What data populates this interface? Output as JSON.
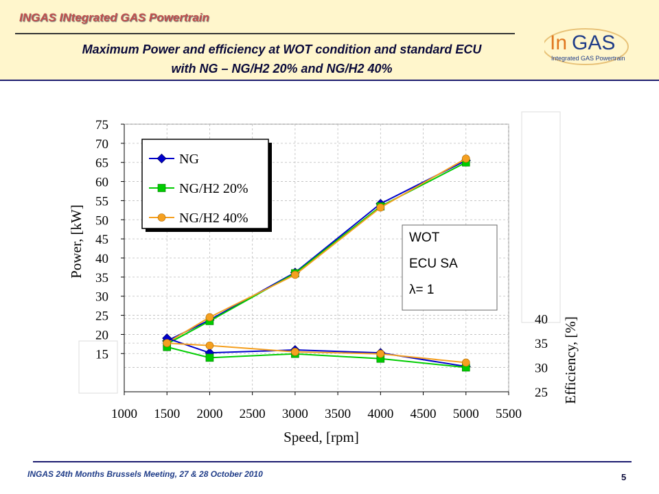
{
  "header": {
    "project_title": "INGAS INtegrated GAS Powertrain",
    "slide_title_line1": "Maximum Power and efficiency at WOT condition and standard ECU",
    "slide_title_line2": "with NG – NG/H2 20% and NG/H2 40%",
    "logo_text_in": "In",
    "logo_text_gas": "GAS",
    "logo_tagline": "Integrated GAS Powertrain"
  },
  "footer": {
    "meeting": "INGAS 24th Months Brussels Meeting, 27 & 28 October 2010",
    "page": "5"
  },
  "colors": {
    "header_bg": "#fff6cc",
    "NG": "#0000cc",
    "NG/H2 20%": "#00cc00",
    "NG/H2 40%": "#f5a020"
  },
  "chart_data": {
    "type": "line",
    "xlabel": "Speed, [rpm]",
    "ylabel": "Power, [kW]",
    "y2label": "Efficiency, [%]",
    "xlim": [
      1000,
      5500
    ],
    "xticks": [
      1000,
      1500,
      2000,
      2500,
      3000,
      3500,
      4000,
      4500,
      5000,
      5500
    ],
    "ylim": [
      5,
      75
    ],
    "yticks": [
      15,
      20,
      25,
      30,
      35,
      40,
      45,
      50,
      55,
      60,
      65,
      70,
      75
    ],
    "y2lim": [
      25,
      80
    ],
    "y2ticks": [
      25,
      30,
      35,
      40
    ],
    "grid": true,
    "legend_position": "top-left",
    "annotation": [
      "WOT",
      "ECU SA",
      "λ= 1"
    ],
    "x": [
      1500,
      2000,
      3000,
      4000,
      5000
    ],
    "power_series": [
      {
        "name": "NG",
        "marker": "diamond",
        "values": [
          18.3,
          23.8,
          36.2,
          54.2,
          65.5
        ]
      },
      {
        "name": "NG/H2 20%",
        "marker": "square",
        "values": [
          17.5,
          23.5,
          36.0,
          53.5,
          65.0
        ]
      },
      {
        "name": "NG/H2 40%",
        "marker": "circle",
        "values": [
          17.8,
          24.5,
          35.6,
          53.2,
          66.0
        ]
      }
    ],
    "efficiency_series": [
      {
        "name": "NG",
        "marker": "diamond",
        "values": [
          36.0,
          33.0,
          33.6,
          33.0,
          30.2
        ]
      },
      {
        "name": "NG/H2 20%",
        "marker": "square",
        "values": [
          34.2,
          32.0,
          32.8,
          31.8,
          30.0
        ]
      },
      {
        "name": "NG/H2 40%",
        "marker": "circle",
        "values": [
          35.0,
          34.5,
          33.2,
          32.8,
          31.0
        ]
      }
    ]
  }
}
